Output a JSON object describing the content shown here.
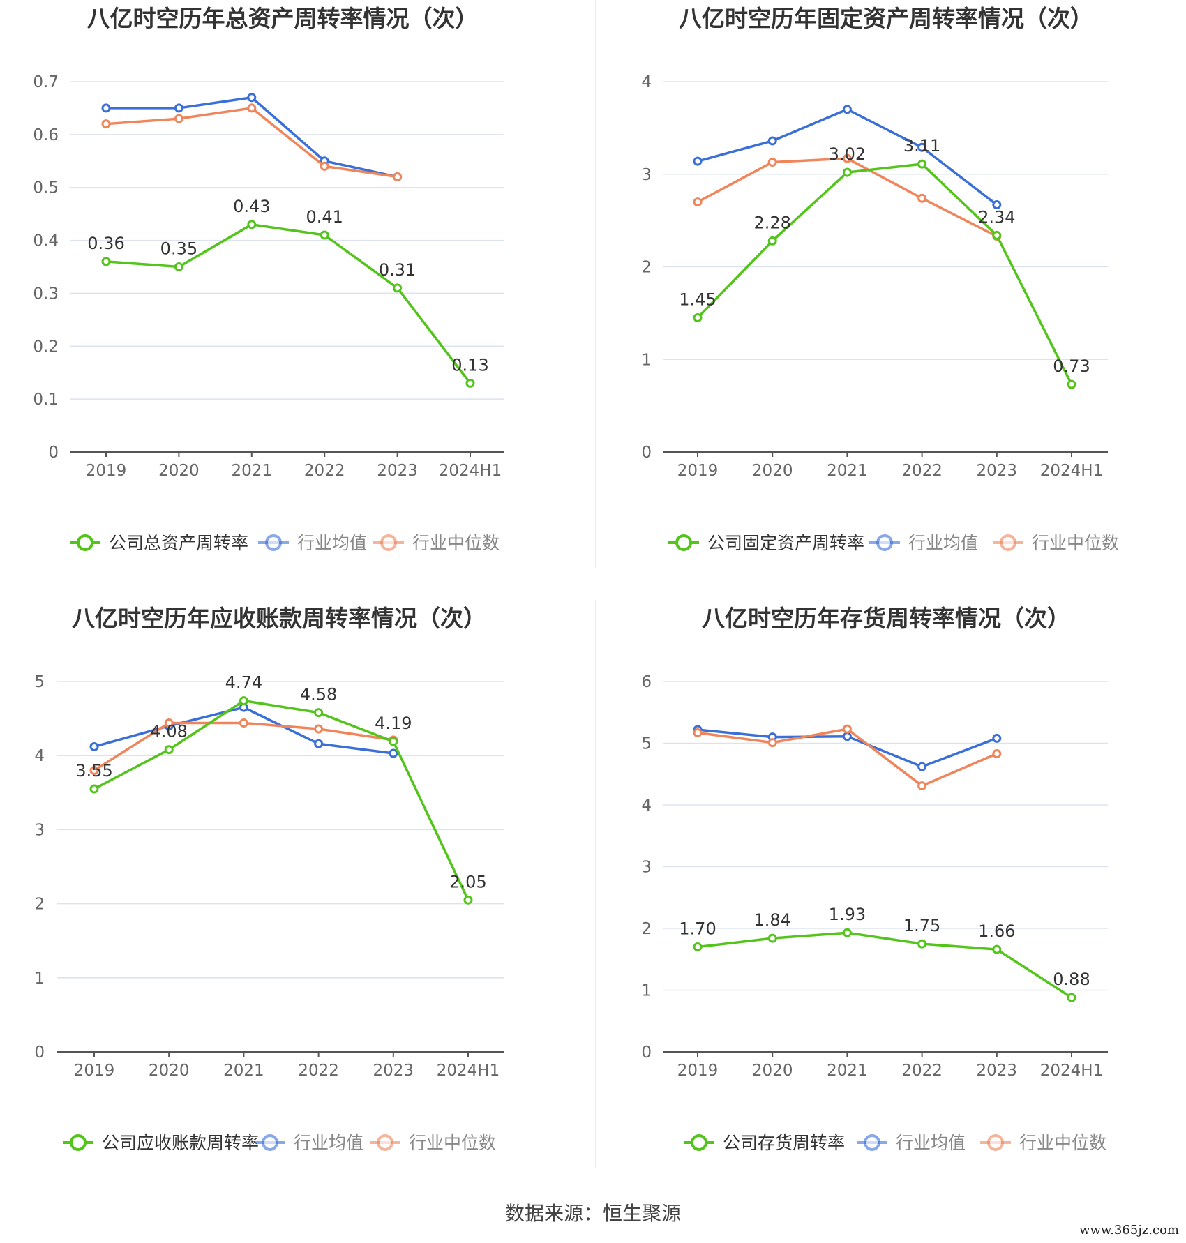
{
  "charts": [
    {
      "chart_data": {
        "type": "line",
        "title": "八亿时空历年总资产周转率情况（次）",
        "categories": [
          "2019",
          "2020",
          "2021",
          "2022",
          "2023",
          "2024H1"
        ],
        "ylim": [
          0,
          0.7
        ],
        "yticks": [
          "0",
          "0.1",
          "0.2",
          "0.3",
          "0.4",
          "0.5",
          "0.6",
          "0.7"
        ],
        "grid": true,
        "legend_position": "bottom",
        "series": [
          {
            "name": "公司总资产周转率",
            "color": "#52c41a",
            "values": [
              0.36,
              0.35,
              0.43,
              0.41,
              0.31,
              0.13
            ],
            "labels": [
              "0.36",
              "0.35",
              "0.43",
              "0.41",
              "0.31",
              "0.13"
            ]
          },
          {
            "name": "行业均值",
            "color": "#3a6fd8",
            "values": [
              0.65,
              0.65,
              0.67,
              0.55,
              0.52,
              null
            ]
          },
          {
            "name": "行业中位数",
            "color": "#f0845a",
            "values": [
              0.62,
              0.63,
              0.65,
              0.54,
              0.52,
              null
            ]
          }
        ]
      }
    },
    {
      "chart_data": {
        "type": "line",
        "title": "八亿时空历年固定资产周转率情况（次）",
        "categories": [
          "2019",
          "2020",
          "2021",
          "2022",
          "2023",
          "2024H1"
        ],
        "ylim": [
          0,
          4
        ],
        "yticks": [
          "0",
          "1",
          "2",
          "3",
          "4"
        ],
        "grid": true,
        "legend_position": "bottom",
        "series": [
          {
            "name": "公司固定资产周转率",
            "color": "#52c41a",
            "values": [
              1.45,
              2.28,
              3.02,
              3.11,
              2.34,
              0.73
            ],
            "labels": [
              "1.45",
              "2.28",
              "3.02",
              "3.11",
              "2.34",
              "0.73"
            ]
          },
          {
            "name": "行业均值",
            "color": "#3a6fd8",
            "values": [
              3.14,
              3.36,
              3.7,
              3.29,
              2.67,
              null
            ]
          },
          {
            "name": "行业中位数",
            "color": "#f0845a",
            "values": [
              2.7,
              3.13,
              3.17,
              2.74,
              2.33,
              null
            ]
          }
        ]
      }
    },
    {
      "chart_data": {
        "type": "line",
        "title": "八亿时空历年应收账款周转率情况（次）",
        "categories": [
          "2019",
          "2020",
          "2021",
          "2022",
          "2023",
          "2024H1"
        ],
        "ylim": [
          0,
          5
        ],
        "yticks": [
          "0",
          "1",
          "2",
          "3",
          "4",
          "5"
        ],
        "grid": true,
        "legend_position": "bottom",
        "series": [
          {
            "name": "公司应收账款周转率",
            "color": "#52c41a",
            "values": [
              3.55,
              4.08,
              4.74,
              4.58,
              4.19,
              2.05
            ],
            "labels": [
              "3.55",
              "4.08",
              "4.74",
              "4.58",
              "4.19",
              "2.05"
            ]
          },
          {
            "name": "行业均值",
            "color": "#3a6fd8",
            "values": [
              4.12,
              4.4,
              4.65,
              4.16,
              4.03,
              null
            ]
          },
          {
            "name": "行业中位数",
            "color": "#f0845a",
            "values": [
              3.8,
              4.44,
              4.44,
              4.36,
              4.21,
              null
            ]
          }
        ]
      }
    },
    {
      "chart_data": {
        "type": "line",
        "title": "八亿时空历年存货周转率情况（次）",
        "categories": [
          "2019",
          "2020",
          "2021",
          "2022",
          "2023",
          "2024H1"
        ],
        "ylim": [
          0,
          6
        ],
        "yticks": [
          "0",
          "1",
          "2",
          "3",
          "4",
          "5",
          "6"
        ],
        "grid": true,
        "legend_position": "bottom",
        "series": [
          {
            "name": "公司存货周转率",
            "color": "#52c41a",
            "values": [
              1.7,
              1.84,
              1.93,
              1.75,
              1.66,
              0.88
            ],
            "labels": [
              "1.70",
              "1.84",
              "1.93",
              "1.75",
              "1.66",
              "0.88"
            ]
          },
          {
            "name": "行业均值",
            "color": "#3a6fd8",
            "values": [
              5.22,
              5.1,
              5.11,
              4.62,
              5.08,
              null
            ]
          },
          {
            "name": "行业中位数",
            "color": "#f0845a",
            "values": [
              5.17,
              5.01,
              5.23,
              4.31,
              4.83,
              null
            ]
          }
        ]
      }
    }
  ],
  "footer": {
    "source": "数据来源：恒生聚源",
    "watermark": "www.365jz.com"
  }
}
